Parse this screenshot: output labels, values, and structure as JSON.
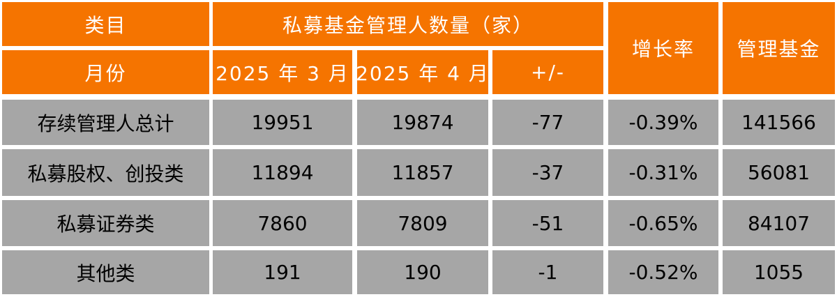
{
  "header": {
    "category": "类目",
    "group": "私募基金管理人数量（家）",
    "growth": "增长率",
    "funds": "管理基金",
    "month": "月份",
    "months": [
      "2025 年 3 月",
      "2025 年 4 月"
    ],
    "change": "+/-"
  },
  "table": {
    "rows": [
      [
        "存续管理人总计",
        "19951",
        "19874",
        "-77",
        "-0.39%",
        "141566"
      ],
      [
        "私募股权、创投类",
        "11894",
        "11857",
        "-37",
        "-0.31%",
        "56081"
      ],
      [
        "私募证券类",
        "7860",
        "7809",
        "-51",
        "-0.65%",
        "84107"
      ],
      [
        "其他类",
        "191",
        "190",
        "-1",
        "-0.52%",
        "1055"
      ]
    ]
  }
}
